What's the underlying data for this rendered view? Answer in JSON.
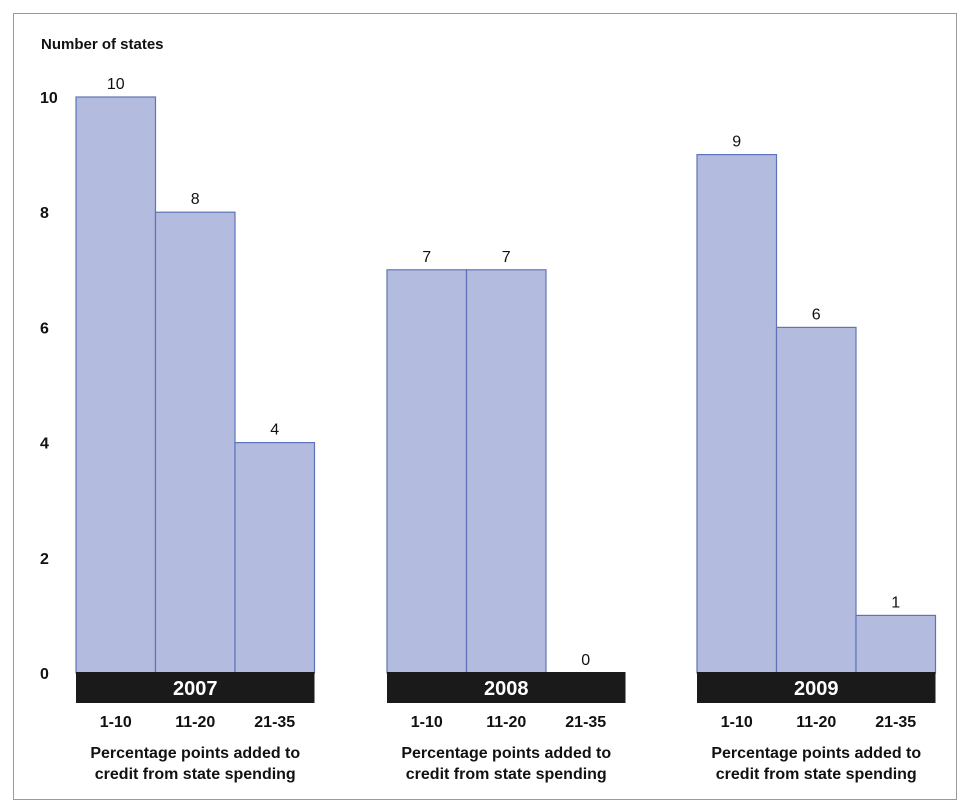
{
  "chart_data": {
    "type": "bar",
    "ylabel": "Number of states",
    "ylim": [
      0,
      10
    ],
    "yticks": [
      "0",
      "2",
      "4",
      "6",
      "8",
      "10"
    ],
    "categories": [
      "1-10",
      "11-20",
      "21-35"
    ],
    "groups": [
      {
        "name": "2007",
        "values": [
          10,
          8,
          4
        ],
        "xlabel": [
          "Percentage points added to",
          "credit from state spending"
        ]
      },
      {
        "name": "2008",
        "values": [
          7,
          7,
          0
        ],
        "xlabel": [
          "Percentage points added to",
          "credit from state spending"
        ]
      },
      {
        "name": "2009",
        "values": [
          9,
          6,
          1
        ],
        "xlabel": [
          "Percentage points added to",
          "credit from state spending"
        ]
      }
    ],
    "grid": false,
    "bar_color": "#b3bcdf",
    "bar_edge_color": "#5f74b8",
    "year_band_color": "#1a1a1a"
  }
}
